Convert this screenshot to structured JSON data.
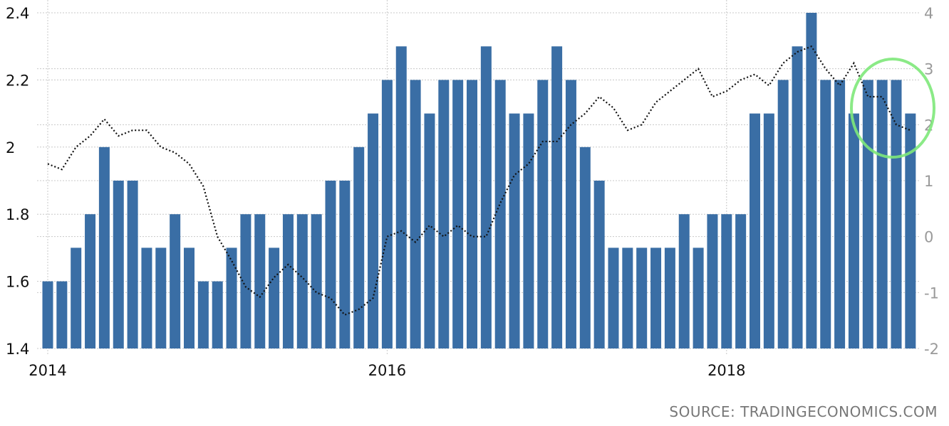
{
  "chart_data": {
    "type": "bar+line",
    "title": "",
    "source": "SOURCE: TRADINGECONOMICS.COM",
    "start_month": "2014-01",
    "x_ticks": [
      "2014",
      "2016",
      "2018"
    ],
    "left_axis": {
      "ylim": [
        1.4,
        2.4
      ],
      "ticks": [
        "1.4",
        "1.6",
        "1.8",
        "2",
        "2.2",
        "2.4"
      ]
    },
    "right_axis": {
      "ylim": [
        -2,
        4
      ],
      "ticks": [
        "-2",
        "-1",
        "0",
        "1",
        "2",
        "3",
        "4"
      ]
    },
    "grid": true,
    "series": [
      {
        "name": "bars (left axis)",
        "type": "bar",
        "color": "#3a6ea5",
        "values": [
          1.6,
          1.6,
          1.7,
          1.8,
          2.0,
          1.9,
          1.9,
          1.7,
          1.7,
          1.8,
          1.7,
          1.6,
          1.6,
          1.7,
          1.8,
          1.8,
          1.7,
          1.8,
          1.8,
          1.8,
          1.9,
          1.9,
          2.0,
          2.1,
          2.2,
          2.3,
          2.2,
          2.1,
          2.2,
          2.2,
          2.2,
          2.3,
          2.2,
          2.1,
          2.1,
          2.2,
          2.3,
          2.2,
          2.0,
          1.9,
          1.7,
          1.7,
          1.7,
          1.7,
          1.7,
          1.8,
          1.7,
          1.8,
          1.8,
          1.8,
          2.1,
          2.1,
          2.2,
          2.3,
          2.4,
          2.2,
          2.2,
          2.1,
          2.2,
          2.2,
          2.2,
          2.1
        ]
      },
      {
        "name": "line (right axis)",
        "type": "line",
        "color": "#111111",
        "values": [
          1.3,
          1.2,
          1.6,
          1.8,
          2.1,
          1.8,
          1.9,
          1.9,
          1.6,
          1.5,
          1.3,
          0.9,
          0.0,
          -0.43,
          -0.9,
          -1.08,
          -0.73,
          -0.5,
          -0.73,
          -1.0,
          -1.1,
          -1.4,
          -1.3,
          -1.1,
          0.0,
          0.1,
          -0.1,
          0.2,
          0.0,
          0.2,
          0.0,
          0.0,
          0.6,
          1.1,
          1.3,
          1.7,
          1.7,
          2.0,
          2.2,
          2.5,
          2.3,
          1.9,
          2.0,
          2.4,
          2.6,
          2.8,
          3.0,
          2.5,
          2.6,
          2.8,
          2.9,
          2.7,
          3.1,
          3.3,
          3.4,
          3.0,
          2.7,
          3.1,
          2.5,
          2.5,
          2.0,
          1.9
        ]
      }
    ],
    "annotation": {
      "type": "circle",
      "color": "#7ee87a",
      "around_months": "2018-11 to 2019-02"
    }
  }
}
